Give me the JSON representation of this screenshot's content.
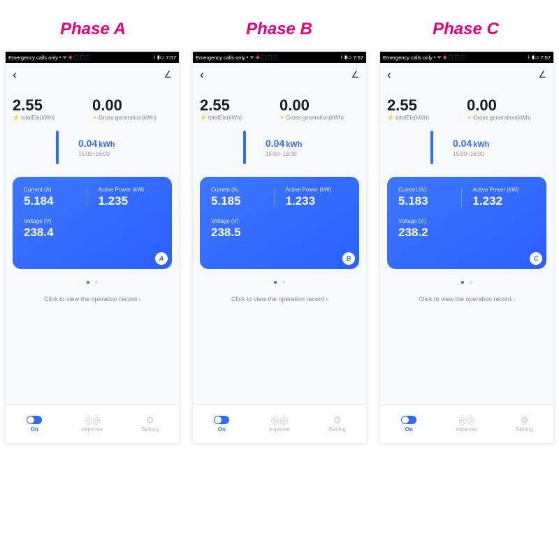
{
  "accent_color": "#e6007e",
  "primary_color": "#2e6bff",
  "card_bg_start": "#3d77ff",
  "card_bg_end": "#2b5fff",
  "status": {
    "left_text": "Emergency calls only",
    "time": "7:57"
  },
  "common": {
    "total_ele_label": "totalEle(kWh)",
    "gross_gen_label": "Gross generation(kWh)",
    "chart_unit": "kWh",
    "current_label": "Current (A)",
    "active_power_label": "Active Power (kW)",
    "voltage_label": "Voltage (V)",
    "operation_link": "Click to view the operation record",
    "nav": {
      "on": "On",
      "expense": "expense",
      "setting": "Setting"
    }
  },
  "phases": [
    {
      "title": "Phase A",
      "total_ele": "2.55",
      "gross_gen": "0.00",
      "chart_value": "0.04",
      "chart_time": "15:00~16:00",
      "current": "5.184",
      "active_power": "1.235",
      "voltage": "238.4",
      "badge": "A"
    },
    {
      "title": "Phase B",
      "total_ele": "2.55",
      "gross_gen": "0.00",
      "chart_value": "0.04",
      "chart_time": "15:00~16:00",
      "current": "5.185",
      "active_power": "1.233",
      "voltage": "238.5",
      "badge": "B"
    },
    {
      "title": "Phase C",
      "total_ele": "2.55",
      "gross_gen": "0.00",
      "chart_value": "0.04",
      "chart_time": "15:00~16:00",
      "current": "5.183",
      "active_power": "1.232",
      "voltage": "238.2",
      "badge": "C"
    }
  ]
}
